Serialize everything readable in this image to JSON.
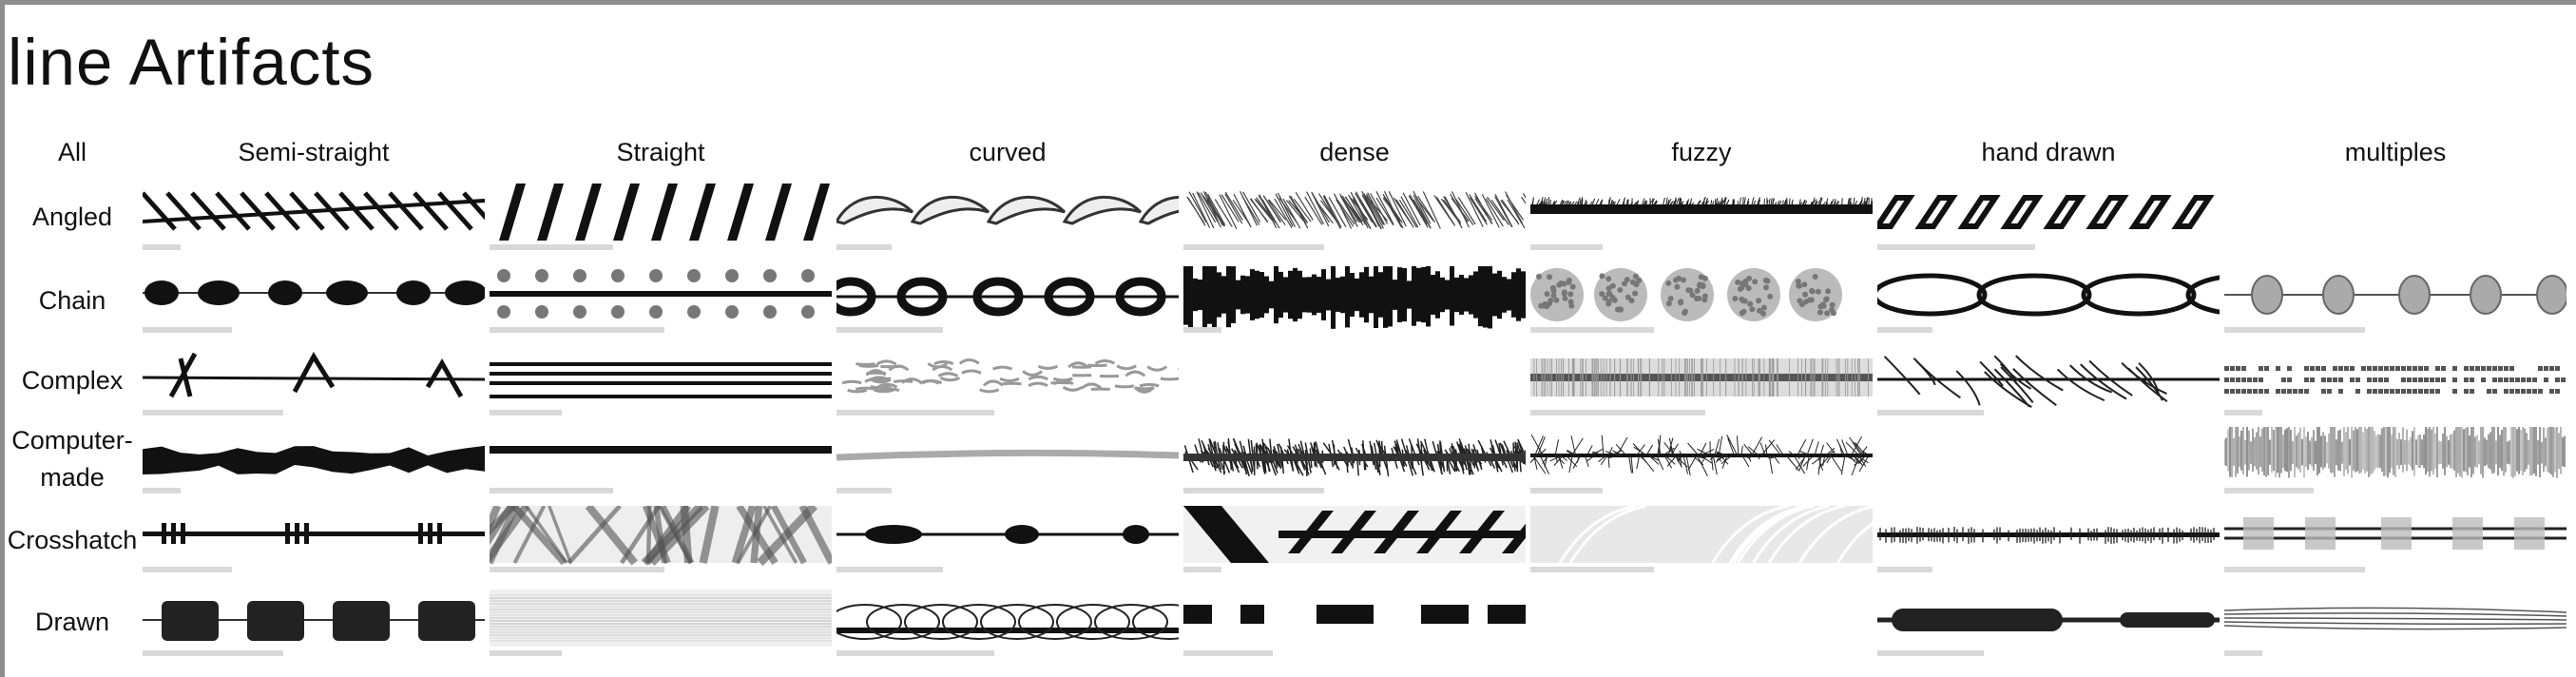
{
  "page": {
    "title": "line Artifacts"
  },
  "grid": {
    "all_label": "All",
    "columns": [
      "Semi-straight",
      "Straight",
      "curved",
      "dense",
      "fuzzy",
      "hand drawn",
      "multiples"
    ],
    "rows": [
      "Angled",
      "Chain",
      "Complex",
      "Computer-made",
      "Crosshatch",
      "Drawn"
    ],
    "row_label_lines": {
      "Computer-made": [
        "Computer-",
        "made"
      ]
    }
  },
  "colors": {
    "ink": "#111111",
    "frame": "#8e8e8e",
    "caption_bar": "#d9d9d9"
  }
}
